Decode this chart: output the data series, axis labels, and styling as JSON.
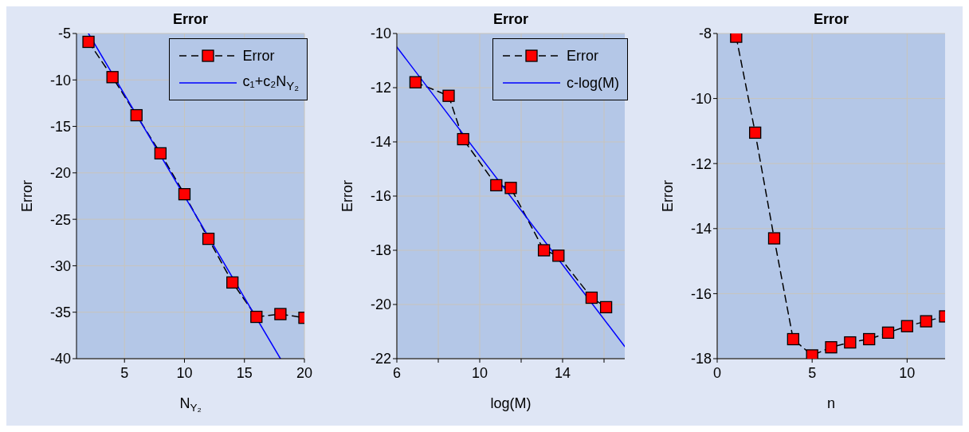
{
  "chart_data": [
    {
      "type": "line",
      "title": "Error",
      "xlabel": "N$_{Y₂}$",
      "ylabel": "Error",
      "xlim": [
        1,
        20
      ],
      "xticks": [
        5,
        10,
        15,
        20
      ],
      "ylim": [
        -40,
        -5
      ],
      "yticks": [
        -40,
        -35,
        -30,
        -25,
        -20,
        -15,
        -10,
        -5
      ],
      "grid": true,
      "legend": "top right",
      "series": [
        {
          "name": "Error",
          "color": "#000000",
          "colors": [
            "#ff0000",
            "#ff0000",
            "#ff0000",
            "#ff0000",
            "#ff0000",
            "#ff0000",
            "#ff0000",
            "#ff0000",
            "#ff0000",
            "#ff0000"
          ],
          "marker": "square",
          "line_style": "dashed",
          "x": [
            2,
            4,
            6,
            8,
            10,
            12,
            14,
            16,
            18,
            20
          ],
          "values": [
            -5.9,
            -9.7,
            -13.8,
            -17.9,
            -22.3,
            -27.1,
            -31.8,
            -35.5,
            -35.2,
            -35.6
          ]
        },
        {
          "name": "c₁+c₂N$_{Y₂}$",
          "color": "#0000ff",
          "marker": "none",
          "line_style": "solid",
          "x": [
            2,
            18
          ],
          "values": [
            -5,
            -40
          ]
        }
      ]
    },
    {
      "type": "line",
      "title": "Error",
      "xlabel": "log(M)",
      "ylabel": "Error",
      "xlim": [
        6,
        17
      ],
      "xticks": [
        6,
        {
          "value": 8,
          "label": null
        },
        10,
        {
          "value": 12,
          "label": null
        },
        14,
        {
          "value": 16,
          "label": null
        }
      ],
      "ylim": [
        -22,
        -10
      ],
      "yticks": [
        -22,
        -20,
        -18,
        -16,
        -14,
        -12,
        -10
      ],
      "grid": true,
      "legend": "top right",
      "series": [
        {
          "name": "Error",
          "color": "#000000",
          "colors": [
            "#ff0000",
            "#ff0000",
            "#ff0000",
            "#ff0000",
            "#ff0000",
            "#ff0000",
            "#ff0000",
            "#ff0000",
            "#ff0000"
          ],
          "marker": "square",
          "line_style": "dashed",
          "x": [
            6.9,
            8.5,
            9.2,
            10.8,
            11.5,
            13.1,
            13.8,
            15.4,
            16.1
          ],
          "values": [
            -11.8,
            -12.3,
            -13.9,
            -15.6,
            -15.7,
            -18.0,
            -18.2,
            -19.75,
            -20.1
          ]
        },
        {
          "name": "c-log(M)",
          "color": "#0000ff",
          "marker": "none",
          "line_style": "solid",
          "x": [
            6,
            17
          ],
          "values": [
            -10.5,
            -21.55
          ]
        }
      ]
    },
    {
      "type": "line",
      "title": "Error",
      "xlabel": "n",
      "ylabel": "Error",
      "xlim": [
        0,
        12
      ],
      "xticks": [
        0,
        5,
        10
      ],
      "ylim": [
        -18,
        -8
      ],
      "yticks": [
        -18,
        -16,
        -14,
        -12,
        -10,
        -8
      ],
      "grid": true,
      "series": [
        {
          "color": "#000000",
          "colors": [
            "#ff0000",
            "#ff0000",
            "#ff0000",
            "#ff0000",
            "#ff0000",
            "#ff0000",
            "#ff0000",
            "#ff0000",
            "#ff0000",
            "#ff0000",
            "#ff0000",
            "#ff0000"
          ],
          "marker": "square",
          "line_style": "dashed",
          "x": [
            1,
            2,
            3,
            4,
            5,
            6,
            7,
            8,
            9,
            10,
            11,
            12
          ],
          "values": [
            -8.1,
            -11.05,
            -14.3,
            -17.4,
            -17.9,
            -17.65,
            -17.5,
            -17.4,
            -17.2,
            -17.0,
            -16.85,
            -16.7
          ]
        }
      ]
    }
  ]
}
